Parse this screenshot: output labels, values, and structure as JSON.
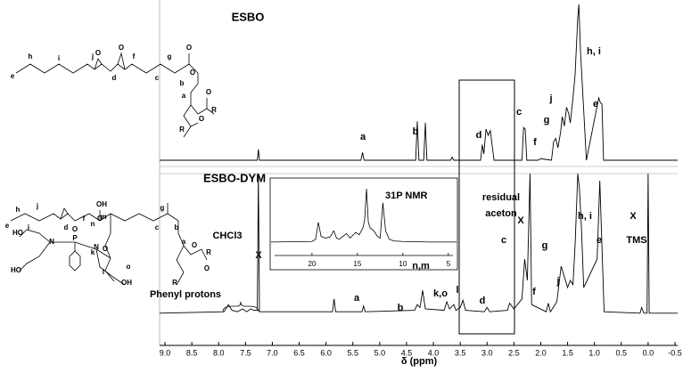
{
  "chart_data": {
    "type": "line",
    "xlabel": "δ (ppm)",
    "xlim": [
      9.1,
      -0.55
    ],
    "xticks": [
      {
        "value": 9,
        "label": "9.0"
      },
      8.5,
      {
        "value": 8,
        "label": "8.0"
      },
      7.5,
      {
        "value": 7,
        "label": "7.0"
      },
      6.5,
      {
        "value": 6,
        "label": "6.0"
      },
      5.5,
      {
        "value": 5,
        "label": "5.0"
      },
      4.5,
      {
        "value": 4,
        "label": "4.0"
      },
      3.5,
      {
        "value": 3,
        "label": "3.0"
      },
      2.5,
      {
        "value": 2,
        "label": "2.0"
      },
      1.5,
      {
        "value": 1,
        "label": "1.0"
      },
      0.5,
      {
        "value": 0,
        "label": "0.0"
      },
      -0.5
    ],
    "ylim": [
      0,
      100
    ],
    "series": [
      {
        "name": "ESBO",
        "color": "#000000",
        "x": [
          9.1,
          7.28,
          7.26,
          7.24,
          5.35,
          5.32,
          5.29,
          4.33,
          4.3,
          4.27,
          4.18,
          4.15,
          4.12,
          3.68,
          3.65,
          3.62,
          3.12,
          3.09,
          3.06,
          3.02,
          2.98,
          2.94,
          2.9,
          2.87,
          2.35,
          2.32,
          2.29,
          2.26,
          2.05,
          2.0,
          1.8,
          1.76,
          1.72,
          1.68,
          1.63,
          1.6,
          1.56,
          1.52,
          1.48,
          1.45,
          1.4,
          1.36,
          1.31,
          1.29,
          1.26,
          1.22,
          1.15,
          0.92,
          0.89,
          0.86,
          0.83,
          0.8,
          -0.55
        ],
        "values": [
          0,
          0,
          7,
          0,
          0,
          5,
          0,
          0,
          25,
          0,
          0,
          24,
          0,
          0,
          2,
          0,
          0,
          10,
          4,
          20,
          16,
          19,
          8,
          0,
          0,
          21,
          20,
          0,
          0,
          1,
          0,
          12,
          14,
          8,
          18,
          28,
          22,
          34,
          30,
          24,
          40,
          55,
          92,
          100,
          70,
          45,
          0,
          40,
          37,
          36,
          0,
          0,
          0
        ],
        "annotations": [
          "a",
          "b",
          "d",
          "c",
          "f",
          "g",
          "j",
          "h, i",
          "e"
        ]
      },
      {
        "name": "ESBO-DYM",
        "color": "#000000",
        "x": [
          9.1,
          7.9,
          7.82,
          7.75,
          7.65,
          7.55,
          7.48,
          7.4,
          7.35,
          7.28,
          7.26,
          7.24,
          5.88,
          5.85,
          5.82,
          5.33,
          5.3,
          5.27,
          4.35,
          4.3,
          4.25,
          4.2,
          4.15,
          3.8,
          3.75,
          3.7,
          3.62,
          3.58,
          3.5,
          3.45,
          3.4,
          3.05,
          3.0,
          2.95,
          2.62,
          2.58,
          2.5,
          2.35,
          2.3,
          2.25,
          2.2,
          2.17,
          1.9,
          1.86,
          1.82,
          1.7,
          1.62,
          1.58,
          1.5,
          1.45,
          1.4,
          1.36,
          1.31,
          1.28,
          1.24,
          1.2,
          0.95,
          0.9,
          0.87,
          0.82,
          0.15,
          0.12,
          0.08,
          0.02,
          0.0,
          -0.02,
          -0.55
        ],
        "values": [
          2,
          3,
          8,
          4,
          3,
          5,
          3,
          5,
          4,
          4,
          100,
          3,
          3,
          12,
          3,
          3,
          7,
          3,
          4,
          8,
          6,
          18,
          5,
          4,
          10,
          5,
          8,
          4,
          6,
          11,
          4,
          3,
          6,
          3,
          4,
          9,
          5,
          12,
          40,
          25,
          100,
          8,
          3,
          9,
          3,
          10,
          35,
          30,
          20,
          25,
          22,
          50,
          100,
          90,
          60,
          20,
          40,
          95,
          60,
          3,
          2,
          6,
          2,
          2,
          100,
          2,
          2
        ],
        "annotations": [
          "Phenyl protons",
          "a",
          "b",
          "n,m",
          "k,o",
          "l",
          "d",
          "c",
          "f",
          "g",
          "j",
          "h, i",
          "e",
          "CHCl3",
          "X",
          "residual",
          "aceton",
          "X",
          "X",
          "TMS"
        ]
      }
    ],
    "inset": {
      "type": "line",
      "title": "31P NMR",
      "color": "#000000",
      "xlim": [
        24.6,
        4.0
      ],
      "xticks": [
        20,
        15,
        10,
        5
      ],
      "ylim": [
        0,
        100
      ],
      "x": [
        24.5,
        20,
        19.6,
        19.3,
        19,
        18.5,
        18,
        17.6,
        17.3,
        17,
        16.6,
        16.2,
        15.8,
        15.2,
        14.8,
        14.4,
        14.2,
        14,
        13.8,
        13.6,
        13.2,
        12.8,
        12.5,
        12.2,
        11.9,
        11.5,
        11,
        10,
        7,
        5,
        4.1
      ],
      "values": [
        5,
        6,
        10,
        40,
        15,
        12,
        14,
        25,
        12,
        10,
        15,
        20,
        12,
        22,
        18,
        30,
        45,
        100,
        40,
        30,
        25,
        15,
        12,
        75,
        25,
        10,
        7,
        6,
        5,
        5,
        5
      ]
    },
    "structures": [
      {
        "labels": [
          "e",
          "h",
          "i",
          "j",
          "f",
          "d",
          "g",
          "c",
          "b",
          "a",
          "O",
          "O",
          "O",
          "O",
          "O",
          "O",
          "R",
          "R"
        ]
      },
      {
        "labels": [
          "e",
          "h",
          "i",
          "j",
          "d",
          "f",
          "n",
          "m",
          "OH",
          "g",
          "c",
          "b",
          "a",
          "k",
          "l",
          "o",
          "P",
          "N",
          "N",
          "O",
          "O",
          "O",
          "O",
          "O",
          "HO",
          "HO",
          "OH",
          "R",
          "R"
        ]
      }
    ]
  }
}
